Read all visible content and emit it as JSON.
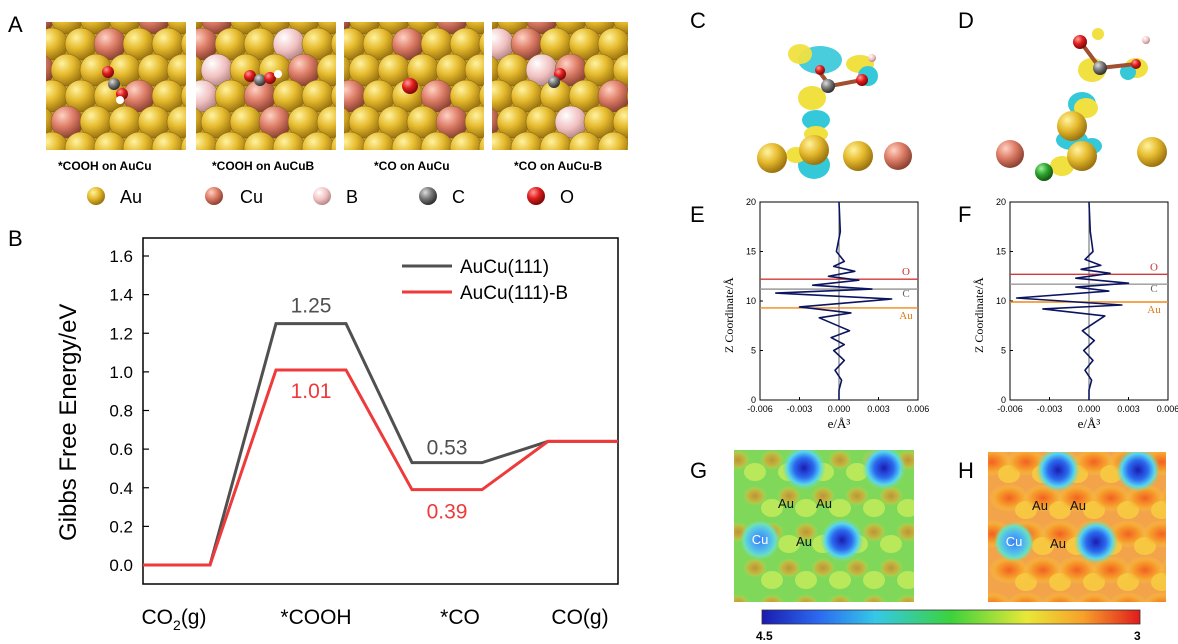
{
  "panels": {
    "A": "A",
    "B": "B",
    "C": "C",
    "D": "D",
    "E": "E",
    "F": "F",
    "G": "G",
    "H": "H"
  },
  "structures": [
    {
      "caption": "*COOH on AuCu"
    },
    {
      "caption": "*COOH on AuCuB"
    },
    {
      "caption": "*CO on AuCu"
    },
    {
      "caption": "*CO on AuCu-B"
    }
  ],
  "atom_legend": [
    {
      "label": "Au",
      "color": "#e6bb2e"
    },
    {
      "label": "Cu",
      "color": "#e07f6b"
    },
    {
      "label": "B",
      "color": "#f3c2c2"
    },
    {
      "label": "C",
      "color": "#7a7a7a"
    },
    {
      "label": "O",
      "color": "#e21f1f"
    }
  ],
  "colors": {
    "au": "#e3b52b",
    "cu": "#de7e68",
    "b": "#f1c0c0",
    "c": "#777777",
    "o": "#e01c1c",
    "series1": "#505050",
    "series2": "#ee3a3a",
    "cdd": "#0b1460",
    "o_line": "#d23a3a",
    "c_line": "#999999",
    "au_line": "#f08a1a",
    "iso_yellow": "#f0e040",
    "iso_cyan": "#35c8d8"
  },
  "chart_data": [
    {
      "type": "line",
      "panel": "B",
      "categories": [
        "CO2(g)",
        "*COOH",
        "*CO",
        "CO(g)"
      ],
      "category_labels": [
        {
          "main": "CO",
          "sub": "2",
          "tail": "(g)"
        },
        {
          "main": "*COOH"
        },
        {
          "main": "*CO"
        },
        {
          "main": "CO(g)"
        }
      ],
      "ylabel": "Gibbs Free Energy/eV",
      "ylim": [
        0,
        1.6
      ],
      "yticks": [
        "0.0",
        "0.2",
        "0.4",
        "0.6",
        "0.8",
        "1.0",
        "1.2",
        "1.4",
        "1.6"
      ],
      "series": [
        {
          "name": "AuCu(111)",
          "values": [
            0,
            1.25,
            0.53,
            0.64
          ],
          "labels": [
            "",
            "1.25",
            "0.53",
            ""
          ]
        },
        {
          "name": "AuCu(111)-B",
          "values": [
            0,
            1.01,
            0.39,
            0.64
          ],
          "labels": [
            "",
            "1.01",
            "0.39",
            ""
          ]
        }
      ],
      "legend": "top-right"
    },
    {
      "type": "line",
      "panel": "E",
      "xlabel": "e/Å³",
      "ylabel": "Z Coordinate/Å",
      "xlim": [
        -0.006,
        0.006
      ],
      "ylim": [
        0,
        20
      ],
      "xticks": [
        "-0.006",
        "-0.003",
        "0.000",
        "0.003",
        "0.006"
      ],
      "yticks": [
        "0",
        "5",
        "10",
        "15",
        "20"
      ],
      "markers": [
        {
          "name": "O",
          "z": 12.2
        },
        {
          "name": "C",
          "z": 11.2
        },
        {
          "name": "Au",
          "z": 9.3
        }
      ],
      "series": [
        {
          "values_x": [
            0.0,
            0.0,
            0.0002,
            -0.0003,
            0.0004,
            -0.0004,
            0.0004,
            -0.0006,
            0.0008,
            -0.0015,
            0.0009,
            -0.003,
            0.004,
            -0.0048,
            0.0025,
            -0.002,
            0.0015,
            -0.0008,
            0.0012,
            -0.0004,
            0.0004,
            -0.0002,
            0.0001,
            0.0
          ],
          "values_z": [
            0,
            1,
            2,
            3,
            4,
            5,
            5.6,
            6.3,
            7,
            8.3,
            8.8,
            9.4,
            10.2,
            10.8,
            11.2,
            11.6,
            12.1,
            12.5,
            13.0,
            13.5,
            14,
            15,
            17,
            20
          ]
        }
      ]
    },
    {
      "type": "line",
      "panel": "F",
      "xlabel": "e/Å³",
      "ylabel": "Z Coordinate/Å",
      "xlim": [
        -0.006,
        0.006
      ],
      "ylim": [
        0,
        20
      ],
      "xticks": [
        "-0.006",
        "-0.003",
        "0.000",
        "0.003",
        "0.006"
      ],
      "yticks": [
        "0",
        "5",
        "10",
        "15",
        "20"
      ],
      "markers": [
        {
          "name": "O",
          "z": 12.7
        },
        {
          "name": "C",
          "z": 11.7
        },
        {
          "name": "Au",
          "z": 9.9
        }
      ],
      "series": [
        {
          "values_x": [
            0.0,
            0.0,
            0.0002,
            -0.0003,
            0.0003,
            -0.0004,
            0.0004,
            -0.0005,
            0.0012,
            -0.0035,
            0.0025,
            -0.0055,
            0.0015,
            -0.001,
            0.003,
            -0.001,
            0.0016,
            -0.0006,
            0.0009,
            -0.0003,
            0.0003,
            0.0001,
            0.0
          ],
          "values_z": [
            0,
            1,
            2,
            3,
            4,
            5,
            6,
            7,
            8.5,
            9.2,
            9.6,
            10.3,
            11.0,
            11.4,
            11.8,
            12.3,
            12.8,
            13.2,
            13.6,
            14.2,
            15,
            17,
            20
          ]
        }
      ]
    },
    {
      "type": "heatmap",
      "panel": "colorbar",
      "min_label": "4.5",
      "max_label": "3"
    }
  ],
  "maps": {
    "G": [
      "Au",
      "Au",
      "Au",
      "Cu"
    ],
    "H": [
      "Au",
      "Au",
      "Au",
      "Cu"
    ]
  }
}
